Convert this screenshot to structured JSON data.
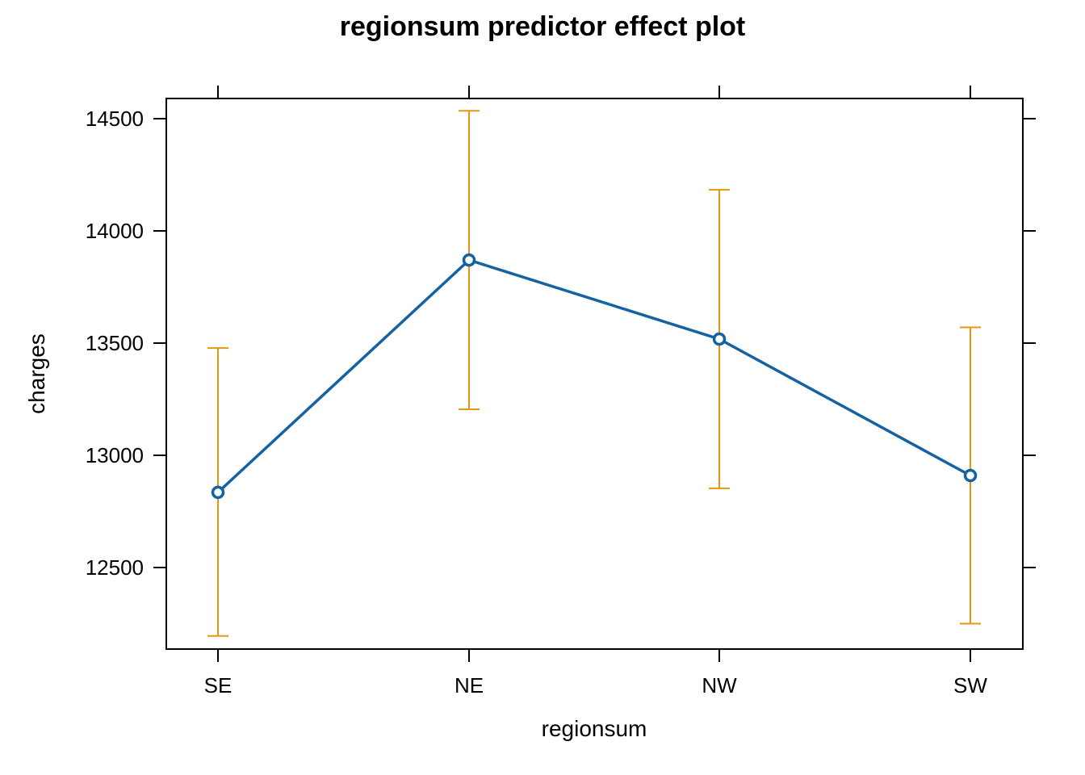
{
  "chart_data": {
    "type": "line",
    "title": "regionsum predictor effect plot",
    "xlabel": "regionsum",
    "ylabel": "charges",
    "categories": [
      "SE",
      "NE",
      "NW",
      "SW"
    ],
    "values": [
      12835,
      13870,
      13518,
      12910
    ],
    "lower": [
      12195,
      13205,
      12853,
      12250
    ],
    "upper": [
      13478,
      14535,
      14183,
      13570
    ],
    "ylim": [
      12160,
      14610
    ],
    "yticks": [
      12500,
      13000,
      13500,
      14000,
      14500
    ],
    "ytick_labels": [
      "12500",
      "13000",
      "13500",
      "14000",
      "14500"
    ],
    "grid": false,
    "line_color": "#1562a3",
    "errorbar_color": "#e8960f"
  }
}
